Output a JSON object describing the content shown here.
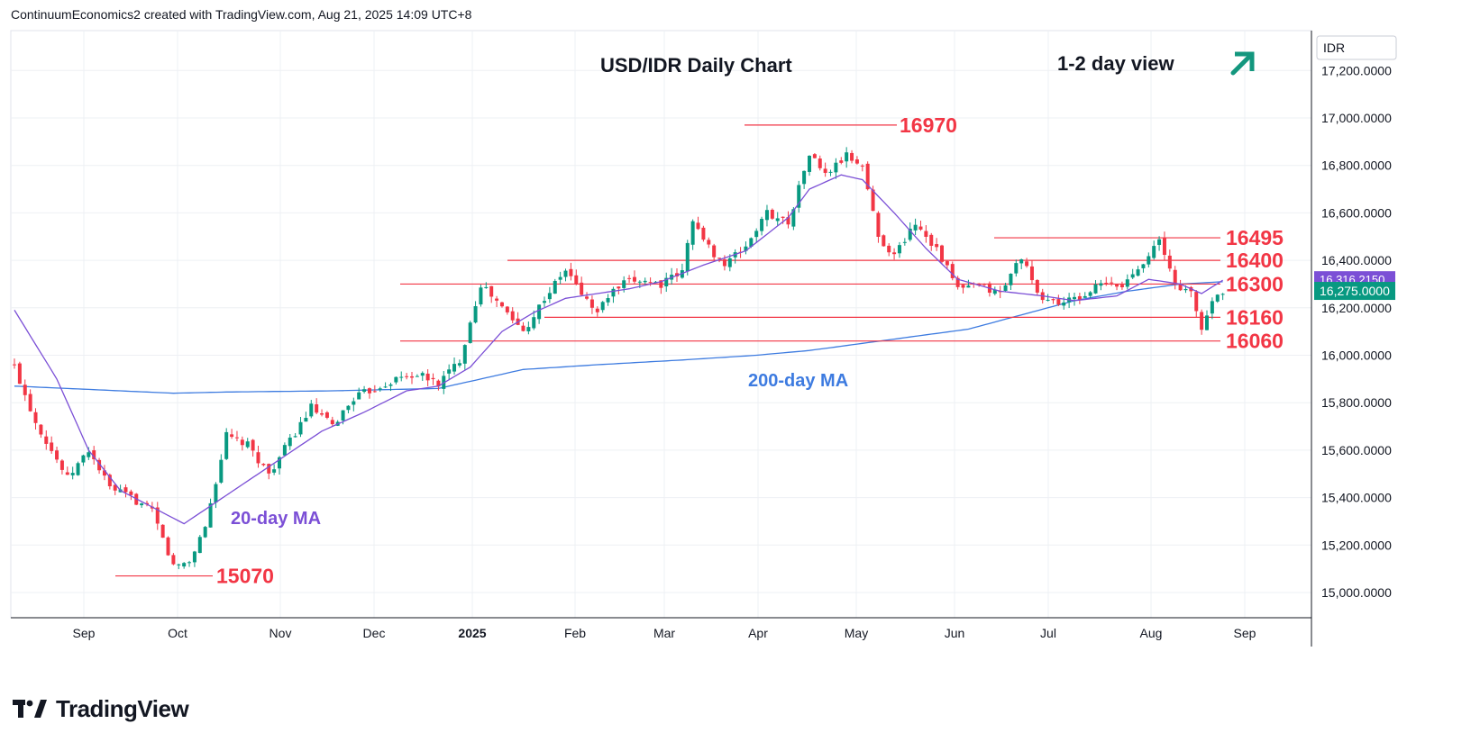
{
  "header": {
    "attribution": "ContinuumEconomics2 created with TradingView.com, Aug 21, 2025 14:09 UTC+8"
  },
  "footer": {
    "brand": "TradingView"
  },
  "colors": {
    "up": "#089981",
    "down": "#f23645",
    "ma20": "#7b4fd6",
    "ma200": "#3d7be0",
    "level": "#f23645",
    "arrow": "#13977e"
  },
  "chart_data": {
    "type": "candlestick",
    "title": "USD/IDR Daily Chart",
    "subtitle": "1-2 day view",
    "currency_label": "IDR",
    "ylim": [
      14880,
      17440
    ],
    "y_ticks": [
      15000,
      15200,
      15400,
      15600,
      15800,
      16000,
      16200,
      16400,
      16600,
      16800,
      17000,
      17200
    ],
    "y_tick_labels": [
      "15,000.0000",
      "15,200.0000",
      "15,400.0000",
      "15,600.0000",
      "15,800.0000",
      "16,000.0000",
      "16,200.0000",
      "16,400.0000",
      "16,600.0000",
      "16,800.0000",
      "17,000.0000",
      "17,200.0000"
    ],
    "x_labels": [
      "Sep",
      "Oct",
      "Nov",
      "Dec",
      "2025",
      "Feb",
      "Mar",
      "Apr",
      "May",
      "Jun",
      "Jul",
      "Aug",
      "Sep"
    ],
    "last_price": {
      "value": 16275,
      "label": "16,275.0000"
    },
    "ma_value": {
      "value": 16316.215,
      "label": "16,316.2150"
    },
    "levels": [
      {
        "value": 16970,
        "label": "16970"
      },
      {
        "value": 16495,
        "label": "16495"
      },
      {
        "value": 16400,
        "label": "16400"
      },
      {
        "value": 16300,
        "label": "16300"
      },
      {
        "value": 16160,
        "label": "16160"
      },
      {
        "value": 16060,
        "label": "16060"
      },
      {
        "value": 15070,
        "label": "15070"
      }
    ],
    "annotations": {
      "ma20": "20-day MA",
      "ma200": "200-day MA"
    },
    "close_anchors": [
      [
        0,
        15950
      ],
      [
        4,
        15720
      ],
      [
        10,
        15480
      ],
      [
        14,
        15600
      ],
      [
        18,
        15440
      ],
      [
        22,
        15400
      ],
      [
        26,
        15340
      ],
      [
        30,
        15110
      ],
      [
        33,
        15130
      ],
      [
        36,
        15280
      ],
      [
        40,
        15660
      ],
      [
        44,
        15620
      ],
      [
        48,
        15500
      ],
      [
        52,
        15640
      ],
      [
        56,
        15780
      ],
      [
        60,
        15700
      ],
      [
        64,
        15820
      ],
      [
        68,
        15860
      ],
      [
        72,
        15900
      ],
      [
        76,
        15920
      ],
      [
        80,
        15880
      ],
      [
        84,
        15980
      ],
      [
        88,
        16300
      ],
      [
        92,
        16200
      ],
      [
        96,
        16100
      ],
      [
        100,
        16240
      ],
      [
        104,
        16360
      ],
      [
        108,
        16230
      ],
      [
        110,
        16180
      ],
      [
        112,
        16250
      ],
      [
        115,
        16300
      ],
      [
        118,
        16320
      ],
      [
        122,
        16300
      ],
      [
        126,
        16350
      ],
      [
        128,
        16580
      ],
      [
        130,
        16480
      ],
      [
        134,
        16380
      ],
      [
        138,
        16460
      ],
      [
        142,
        16600
      ],
      [
        146,
        16560
      ],
      [
        150,
        16850
      ],
      [
        153,
        16760
      ],
      [
        157,
        16840
      ],
      [
        160,
        16800
      ],
      [
        163,
        16500
      ],
      [
        166,
        16420
      ],
      [
        170,
        16560
      ],
      [
        174,
        16450
      ],
      [
        178,
        16280
      ],
      [
        182,
        16290
      ],
      [
        186,
        16260
      ],
      [
        190,
        16420
      ],
      [
        193,
        16250
      ],
      [
        197,
        16220
      ],
      [
        201,
        16240
      ],
      [
        205,
        16300
      ],
      [
        209,
        16290
      ],
      [
        213,
        16400
      ],
      [
        216,
        16480
      ],
      [
        219,
        16300
      ],
      [
        222,
        16260
      ],
      [
        224,
        16110
      ],
      [
        226,
        16230
      ],
      [
        228,
        16275
      ]
    ],
    "ma20_anchors": [
      [
        0,
        16190
      ],
      [
        8,
        15900
      ],
      [
        14,
        15600
      ],
      [
        20,
        15430
      ],
      [
        26,
        15360
      ],
      [
        32,
        15290
      ],
      [
        38,
        15380
      ],
      [
        44,
        15470
      ],
      [
        50,
        15560
      ],
      [
        58,
        15680
      ],
      [
        66,
        15760
      ],
      [
        74,
        15850
      ],
      [
        80,
        15870
      ],
      [
        86,
        15950
      ],
      [
        92,
        16100
      ],
      [
        98,
        16180
      ],
      [
        104,
        16240
      ],
      [
        110,
        16260
      ],
      [
        116,
        16280
      ],
      [
        122,
        16310
      ],
      [
        130,
        16380
      ],
      [
        138,
        16440
      ],
      [
        146,
        16580
      ],
      [
        150,
        16700
      ],
      [
        156,
        16760
      ],
      [
        160,
        16740
      ],
      [
        166,
        16600
      ],
      [
        172,
        16450
      ],
      [
        178,
        16320
      ],
      [
        186,
        16270
      ],
      [
        194,
        16250
      ],
      [
        200,
        16230
      ],
      [
        208,
        16250
      ],
      [
        214,
        16320
      ],
      [
        220,
        16300
      ],
      [
        224,
        16260
      ],
      [
        228,
        16316
      ]
    ],
    "ma200_anchors": [
      [
        0,
        15870
      ],
      [
        10,
        15860
      ],
      [
        20,
        15850
      ],
      [
        30,
        15840
      ],
      [
        40,
        15845
      ],
      [
        60,
        15850
      ],
      [
        80,
        15860
      ],
      [
        88,
        15900
      ],
      [
        96,
        15940
      ],
      [
        110,
        15960
      ],
      [
        126,
        15980
      ],
      [
        140,
        16000
      ],
      [
        150,
        16020
      ],
      [
        160,
        16050
      ],
      [
        170,
        16080
      ],
      [
        180,
        16110
      ],
      [
        190,
        16170
      ],
      [
        200,
        16230
      ],
      [
        210,
        16270
      ],
      [
        220,
        16300
      ],
      [
        228,
        16310
      ]
    ]
  }
}
